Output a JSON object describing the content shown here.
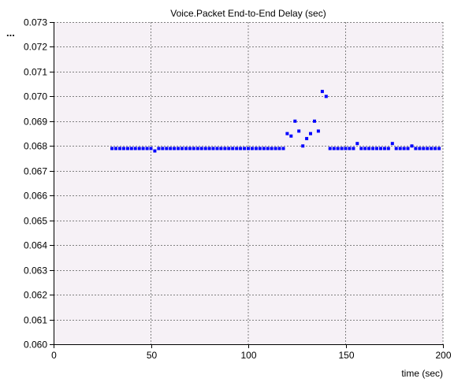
{
  "chart_data": {
    "type": "scatter",
    "title": "Voice.Packet End-to-End Delay (sec)",
    "xlabel": "time (sec)",
    "ylabel": "",
    "corner_label": "...",
    "xlim": [
      0,
      200
    ],
    "ylim": [
      0.06,
      0.073
    ],
    "x_ticks": [
      0,
      50,
      100,
      150,
      200
    ],
    "x_tick_labels": [
      "0",
      "50",
      "100",
      "150",
      "200"
    ],
    "y_ticks": [
      0.06,
      0.061,
      0.062,
      0.063,
      0.064,
      0.065,
      0.066,
      0.067,
      0.068,
      0.069,
      0.07,
      0.071,
      0.072,
      0.073
    ],
    "y_tick_labels": [
      "0.060",
      "0.061",
      "0.062",
      "0.063",
      "0.064",
      "0.065",
      "0.066",
      "0.067",
      "0.068",
      "0.069",
      "0.070",
      "0.071",
      "0.072",
      "0.073"
    ],
    "grid": true,
    "colors": {
      "plot_background": "#f6f1f6",
      "grid": "#808080",
      "marker": "#0000ff",
      "axis": "#000000"
    },
    "series": [
      {
        "points": [
          [
            30,
            0.0679
          ],
          [
            32,
            0.0679
          ],
          [
            34,
            0.0679
          ],
          [
            36,
            0.0679
          ],
          [
            38,
            0.0679
          ],
          [
            40,
            0.0679
          ],
          [
            42,
            0.0679
          ],
          [
            44,
            0.0679
          ],
          [
            46,
            0.0679
          ],
          [
            48,
            0.0679
          ],
          [
            50,
            0.0679
          ],
          [
            52,
            0.0678
          ],
          [
            54,
            0.0679
          ],
          [
            56,
            0.0679
          ],
          [
            58,
            0.0679
          ],
          [
            60,
            0.0679
          ],
          [
            62,
            0.0679
          ],
          [
            64,
            0.0679
          ],
          [
            66,
            0.0679
          ],
          [
            68,
            0.0679
          ],
          [
            70,
            0.0679
          ],
          [
            72,
            0.0679
          ],
          [
            74,
            0.0679
          ],
          [
            76,
            0.0679
          ],
          [
            78,
            0.0679
          ],
          [
            80,
            0.0679
          ],
          [
            82,
            0.0679
          ],
          [
            84,
            0.0679
          ],
          [
            86,
            0.0679
          ],
          [
            88,
            0.0679
          ],
          [
            90,
            0.0679
          ],
          [
            92,
            0.0679
          ],
          [
            94,
            0.0679
          ],
          [
            96,
            0.0679
          ],
          [
            98,
            0.0679
          ],
          [
            100,
            0.0679
          ],
          [
            102,
            0.0679
          ],
          [
            104,
            0.0679
          ],
          [
            106,
            0.0679
          ],
          [
            108,
            0.0679
          ],
          [
            110,
            0.0679
          ],
          [
            112,
            0.0679
          ],
          [
            114,
            0.0679
          ],
          [
            116,
            0.0679
          ],
          [
            118,
            0.0679
          ],
          [
            120,
            0.0685
          ],
          [
            122,
            0.0684
          ],
          [
            124,
            0.069
          ],
          [
            126,
            0.0686
          ],
          [
            128,
            0.068
          ],
          [
            130,
            0.0683
          ],
          [
            132,
            0.0685
          ],
          [
            134,
            0.069
          ],
          [
            136,
            0.0686
          ],
          [
            138,
            0.0702
          ],
          [
            140,
            0.07
          ],
          [
            142,
            0.0679
          ],
          [
            144,
            0.0679
          ],
          [
            146,
            0.0679
          ],
          [
            148,
            0.0679
          ],
          [
            150,
            0.0679
          ],
          [
            152,
            0.0679
          ],
          [
            154,
            0.0679
          ],
          [
            156,
            0.0681
          ],
          [
            158,
            0.0679
          ],
          [
            160,
            0.0679
          ],
          [
            162,
            0.0679
          ],
          [
            164,
            0.0679
          ],
          [
            166,
            0.0679
          ],
          [
            168,
            0.0679
          ],
          [
            170,
            0.0679
          ],
          [
            172,
            0.0679
          ],
          [
            174,
            0.0681
          ],
          [
            176,
            0.0679
          ],
          [
            178,
            0.0679
          ],
          [
            180,
            0.0679
          ],
          [
            182,
            0.0679
          ],
          [
            184,
            0.068
          ],
          [
            186,
            0.0679
          ],
          [
            188,
            0.0679
          ],
          [
            190,
            0.0679
          ],
          [
            192,
            0.0679
          ],
          [
            194,
            0.0679
          ],
          [
            196,
            0.0679
          ],
          [
            198,
            0.0679
          ]
        ]
      }
    ]
  }
}
